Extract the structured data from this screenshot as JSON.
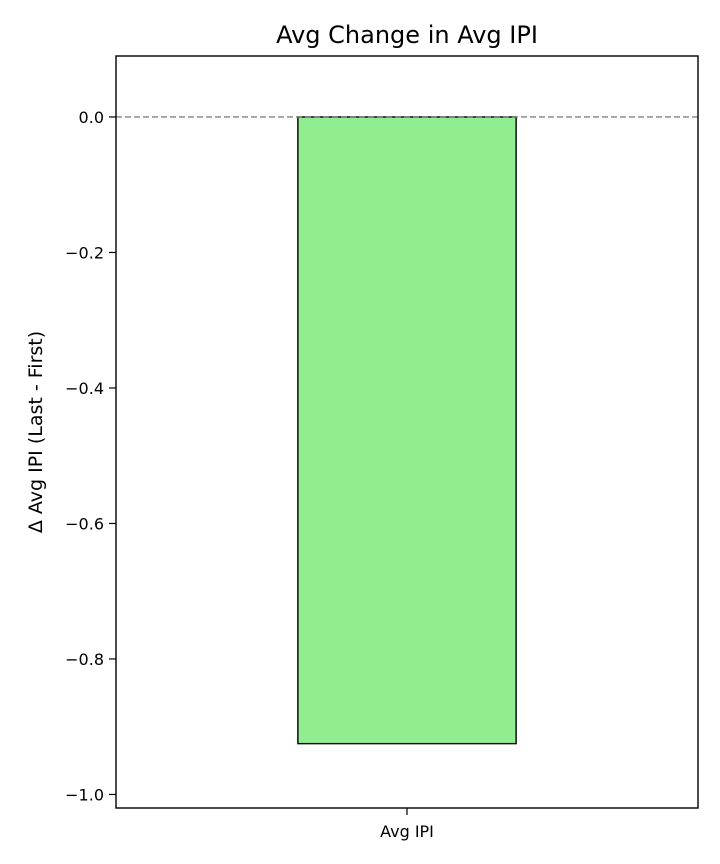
{
  "chart_data": {
    "type": "bar",
    "title": "Avg Change in Avg IPI",
    "xlabel": "",
    "ylabel": "Δ Avg IPI (Last - First)",
    "categories": [
      "Avg IPI"
    ],
    "values": [
      -0.925
    ],
    "ylim": [
      -1.02,
      0.09
    ],
    "yticks": [
      0.0,
      -0.2,
      -0.4,
      -0.6,
      -0.8,
      -1.0
    ],
    "ytick_labels": [
      "0.0",
      "−0.2",
      "−0.4",
      "−0.6",
      "−0.8",
      "−1.0"
    ],
    "reference_line": 0.0,
    "grid": false,
    "legend": "none",
    "colors": {
      "bar_fill": "#90ee90",
      "bar_edge": "#000000",
      "reference_line": "#808080",
      "axes": "#000000"
    }
  }
}
